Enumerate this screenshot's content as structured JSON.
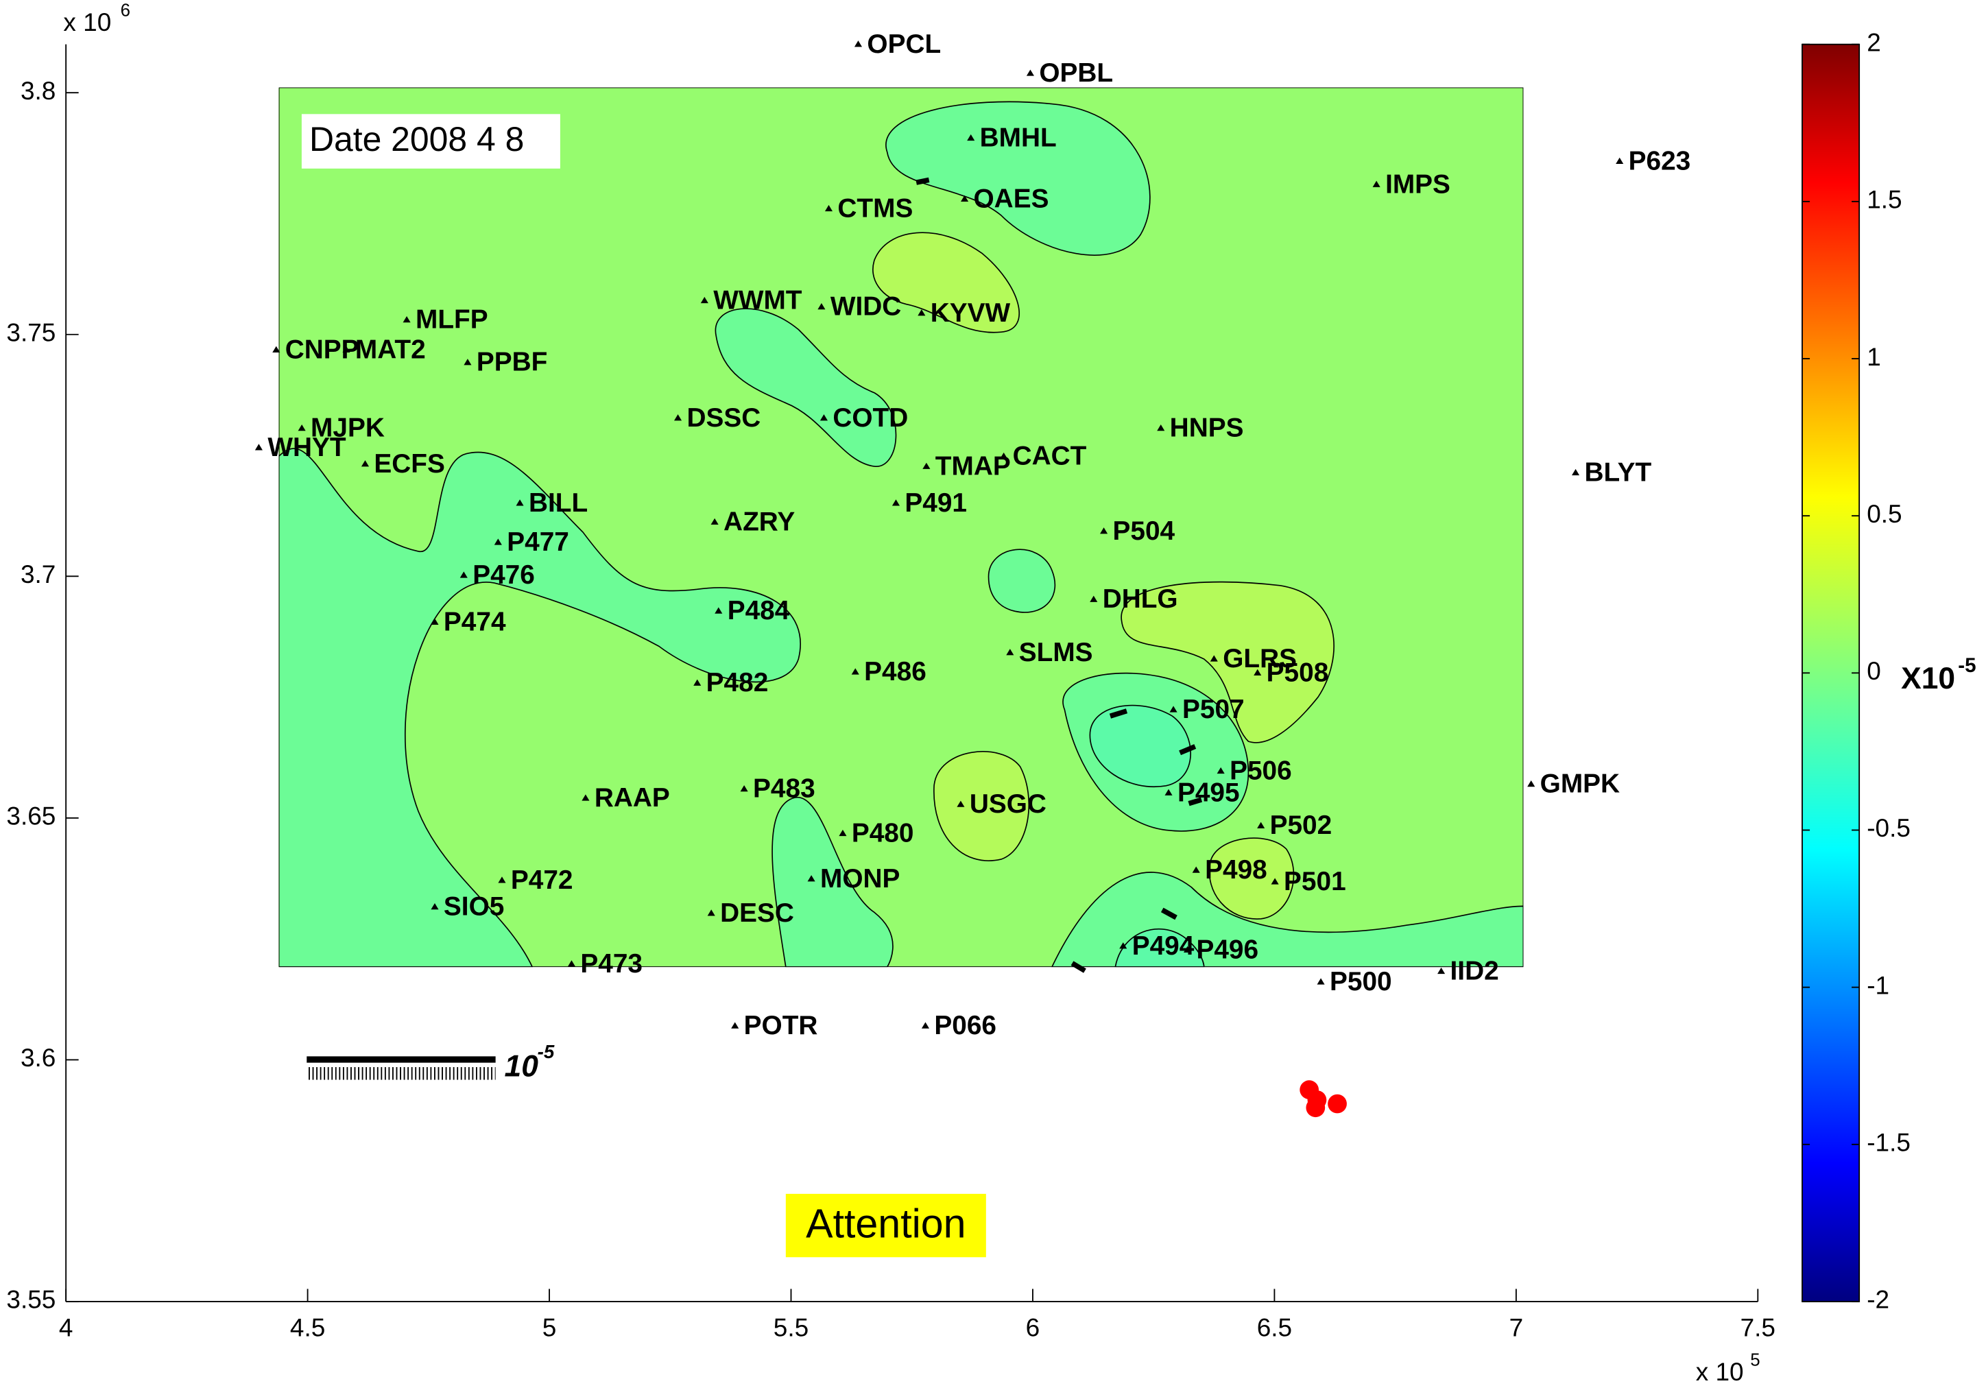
{
  "chart_data": {
    "type": "map",
    "xlim": [
      4,
      7.5
    ],
    "ylim": [
      3.55,
      3.81
    ],
    "xticks": [
      4,
      4.5,
      5,
      5.5,
      6,
      6.5,
      7,
      7.5
    ],
    "yticks": [
      3.55,
      3.6,
      3.65,
      3.7,
      3.75,
      3.8
    ],
    "x_multiplier": "x 10",
    "x_exponent": "5",
    "y_multiplier": "x 10",
    "y_exponent": "6",
    "date_label": "Date 2008 4 8",
    "attention_label": "Attention",
    "scale_label": "10",
    "scale_exponent": "-5",
    "field_color": "#96fc6e",
    "field_extent": {
      "x": [
        4.44,
        7.015
      ],
      "y": [
        3.6192,
        3.801
      ]
    },
    "stations": {
      "names": [
        "OPCL",
        "OPBL",
        "BMHL",
        "P623",
        "IMPS",
        "OAES",
        "CTMS",
        "WWMT",
        "WIDC",
        "KYVW",
        "MLFP",
        "CNPP",
        "MAT2",
        "PPBF",
        "DSSC",
        "COTD",
        "MJPK",
        "HNPS",
        "WHYT",
        "CACT",
        "ECFS",
        "TMAP",
        "BLYT",
        "BILL",
        "P491",
        "AZRY",
        "P504",
        "P477",
        "P476",
        "DHLG",
        "P484",
        "P474",
        "SLMS",
        "GLRS",
        "P508",
        "P486",
        "P482",
        "P507",
        "P506",
        "GMPK",
        "P483",
        "P495",
        "RAAP",
        "USGC",
        "P502",
        "P480",
        "P498",
        "P501",
        "MONP",
        "P472",
        "SIO5",
        "DESC",
        "P494",
        "P496",
        "P473",
        "IID2",
        "P500",
        "POTR",
        "P066"
      ],
      "x": [
        5.639,
        5.995,
        5.872,
        7.214,
        6.711,
        5.859,
        5.578,
        5.321,
        5.563,
        5.77,
        4.705,
        4.435,
        4.58,
        4.831,
        5.266,
        5.568,
        4.488,
        6.265,
        4.399,
        5.94,
        4.619,
        5.78,
        7.123,
        4.939,
        5.717,
        5.342,
        6.147,
        4.894,
        4.823,
        6.126,
        5.35,
        4.763,
        5.953,
        6.375,
        6.465,
        5.633,
        5.306,
        6.291,
        6.389,
        7.031,
        5.403,
        6.281,
        5.075,
        5.851,
        6.472,
        5.607,
        6.338,
        6.501,
        5.542,
        4.902,
        4.763,
        5.335,
        6.187,
        6.32,
        5.046,
        6.845,
        6.596,
        5.384,
        5.778
      ],
      "y": [
        3.81,
        3.804,
        3.7906,
        3.7858,
        3.781,
        3.778,
        3.776,
        3.757,
        3.7557,
        3.7544,
        3.753,
        3.7468,
        3.7468,
        3.7442,
        3.7327,
        3.7327,
        3.7306,
        3.7306,
        3.7266,
        3.7248,
        3.7232,
        3.7227,
        3.7214,
        3.7151,
        3.7151,
        3.7112,
        3.7093,
        3.707,
        3.7002,
        3.6952,
        3.6928,
        3.6905,
        3.6842,
        3.6829,
        3.68,
        3.6802,
        3.6779,
        3.6724,
        3.6597,
        3.657,
        3.656,
        3.6552,
        3.6541,
        3.6528,
        3.6484,
        3.6468,
        3.6392,
        3.6368,
        3.6374,
        3.6371,
        3.6316,
        3.6303,
        3.6235,
        3.6227,
        3.6198,
        3.6183,
        3.6161,
        3.607,
        3.607
      ]
    },
    "events": {
      "x": [
        6.572,
        6.588,
        6.585,
        6.63
      ],
      "y": [
        3.5938,
        3.5917,
        3.5901,
        3.5909
      ],
      "color": "#ff0000"
    },
    "colorbar": {
      "lim": [
        -2,
        2
      ],
      "ticks": [
        2,
        1.5,
        1,
        0.5,
        0,
        -0.5,
        -1,
        -1.5,
        -2
      ],
      "label": "X10",
      "label_exponent": "-5",
      "colormap": "jet"
    }
  }
}
